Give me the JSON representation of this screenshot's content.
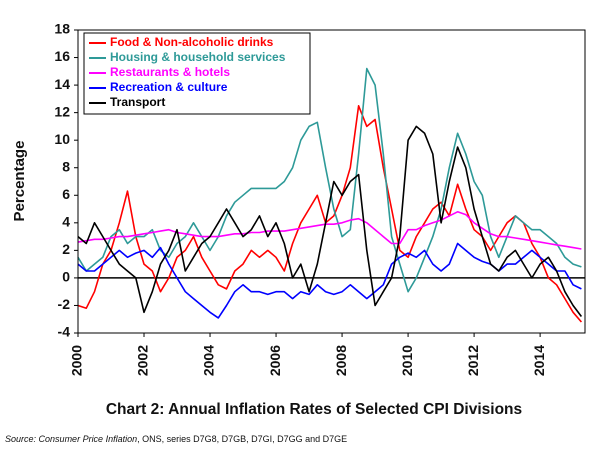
{
  "chart_data": {
    "type": "line",
    "title": "Chart 2: Annual Inflation Rates of Selected CPI Divisions",
    "y_label": "Percentage",
    "source": {
      "prefix": "Source:",
      "publication": "Consumer Price Inflation",
      "rest": ", ONS, series D7G8, D7GB, D7GI, D7GG and D7GE"
    },
    "xlim": [
      2000,
      2015.36
    ],
    "xticks": [
      2000,
      2002,
      2004,
      2006,
      2008,
      2010,
      2012,
      2014
    ],
    "ylim": [
      -4,
      18
    ],
    "yticks": [
      -4,
      -2,
      0,
      2,
      4,
      6,
      8,
      10,
      12,
      14,
      16,
      18
    ],
    "zero_line": true,
    "grid": false,
    "legend": "top-left",
    "x": [
      2000,
      2000.25,
      2000.5,
      2000.75,
      2001,
      2001.25,
      2001.5,
      2001.75,
      2002,
      2002.25,
      2002.5,
      2002.75,
      2003,
      2003.25,
      2003.5,
      2003.75,
      2004,
      2004.25,
      2004.5,
      2004.75,
      2005,
      2005.25,
      2005.5,
      2005.75,
      2006,
      2006.25,
      2006.5,
      2006.75,
      2007,
      2007.25,
      2007.5,
      2007.75,
      2008,
      2008.25,
      2008.5,
      2008.75,
      2009,
      2009.25,
      2009.5,
      2009.75,
      2010,
      2010.25,
      2010.5,
      2010.75,
      2011,
      2011.25,
      2011.5,
      2011.75,
      2012,
      2012.25,
      2012.5,
      2012.75,
      2013,
      2013.25,
      2013.5,
      2013.75,
      2014,
      2014.25,
      2014.5,
      2014.75,
      2015,
      2015.25
    ],
    "series": [
      {
        "name": "Food & Non-alcoholic drinks",
        "color": "#ff0000",
        "values": [
          -2,
          -2.2,
          -1,
          1,
          2,
          4,
          6.3,
          3,
          1,
          0.5,
          -1,
          0,
          1.5,
          2,
          3,
          1.5,
          0.5,
          -0.5,
          -0.8,
          0.5,
          1,
          2,
          1.5,
          2,
          1.5,
          0.5,
          2.5,
          4,
          5,
          6,
          4,
          4.5,
          6,
          8,
          12.5,
          11,
          11.5,
          8,
          5,
          2,
          1.5,
          3,
          4,
          5,
          5.5,
          4.5,
          6.8,
          5,
          3.5,
          3,
          2,
          3,
          4,
          4.5,
          4,
          2.5,
          1.5,
          0,
          -0.5,
          -1.5,
          -2.5,
          -3.2
        ]
      },
      {
        "name": "Housing & household services",
        "color": "#2e9a98",
        "values": [
          1.5,
          0.5,
          1,
          1.5,
          3,
          3.5,
          2.5,
          3,
          3,
          3.5,
          2,
          1.5,
          2.5,
          3,
          4,
          3,
          2,
          3,
          4.5,
          5.5,
          6,
          6.5,
          6.5,
          6.5,
          6.5,
          7,
          8,
          10,
          11,
          11.3,
          8,
          5,
          3,
          3.5,
          9,
          15.2,
          14,
          9,
          3,
          1,
          -1,
          0,
          1.5,
          3,
          5,
          8,
          10.5,
          9,
          7,
          6,
          3,
          1.5,
          3,
          4.5,
          4,
          3.5,
          3.5,
          3,
          2.5,
          1.5,
          1,
          0.8
        ]
      },
      {
        "name": "Restaurants & hotels",
        "color": "#ff00ff",
        "values": [
          2.6,
          2.7,
          2.8,
          2.8,
          2.9,
          3,
          3,
          3.1,
          3.2,
          3.3,
          3.4,
          3.5,
          3.3,
          3.2,
          3.1,
          3,
          3,
          3,
          3.1,
          3.2,
          3.2,
          3.3,
          3.3,
          3.4,
          3.4,
          3.4,
          3.5,
          3.6,
          3.7,
          3.8,
          3.9,
          3.9,
          4,
          4.2,
          4.3,
          4,
          3.5,
          3,
          2.5,
          2.5,
          3.5,
          3.5,
          3.8,
          4,
          4.2,
          4.5,
          4.8,
          4.6,
          4,
          3.6,
          3.2,
          3,
          3,
          2.9,
          2.8,
          2.7,
          2.6,
          2.5,
          2.4,
          2.3,
          2.2,
          2.1
        ]
      },
      {
        "name": "Recreation & culture",
        "color": "#0000ff",
        "values": [
          1,
          0.5,
          0.5,
          1,
          1.5,
          2,
          1.5,
          1.8,
          2,
          1.5,
          2.2,
          1,
          0,
          -1,
          -1.5,
          -2,
          -2.5,
          -2.9,
          -2,
          -1,
          -0.5,
          -1,
          -1,
          -1.2,
          -1,
          -1,
          -1.5,
          -1,
          -1.2,
          -0.5,
          -1,
          -1.2,
          -1,
          -0.5,
          -1,
          -1.5,
          -1,
          -0.5,
          1,
          1.5,
          1.8,
          1.5,
          2,
          1,
          0.5,
          1,
          2.5,
          2,
          1.5,
          1.2,
          1,
          0.5,
          1,
          1,
          1.5,
          2,
          1.5,
          1,
          0.5,
          0.5,
          -0.5,
          -0.8
        ]
      },
      {
        "name": "Transport",
        "color": "#000000",
        "values": [
          3,
          2.5,
          4,
          3,
          2,
          1,
          0.5,
          0,
          -2.5,
          -1,
          1,
          2,
          3.5,
          0.5,
          1.5,
          2.5,
          3,
          4,
          5,
          4,
          3,
          3.5,
          4.5,
          3,
          4,
          2.5,
          0,
          1,
          -1,
          1,
          4,
          7,
          6,
          7,
          7.5,
          2,
          -2,
          -1,
          0,
          3,
          10,
          11,
          10.5,
          9,
          4,
          7,
          9.5,
          8,
          5,
          3,
          1,
          0.5,
          1.5,
          2,
          1,
          0,
          1,
          1.5,
          0.5,
          -1,
          -2,
          -2.8
        ]
      }
    ]
  }
}
